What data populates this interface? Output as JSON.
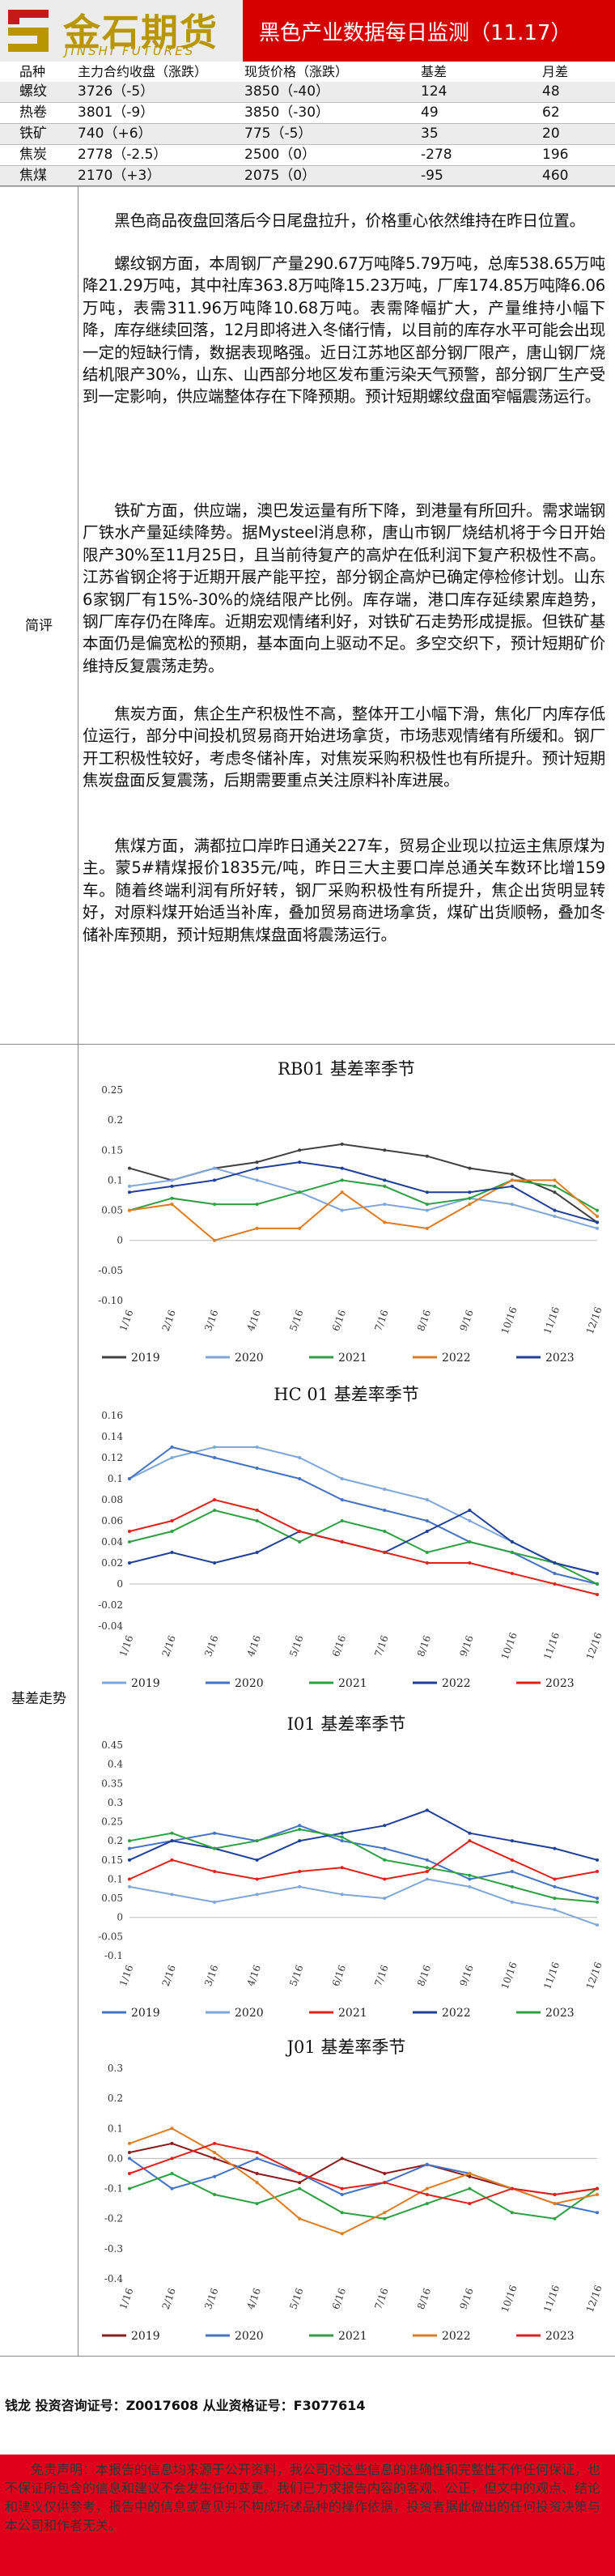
{
  "header": {
    "logo_cn": "金石期货",
    "logo_en": "JINSHI FUTURES",
    "title": "黑色产业数据每日监测（11.17）"
  },
  "price_table": {
    "headers": [
      "品种",
      "主力合约收盘（涨跌）",
      "现货价格（涨跌）",
      "基差",
      "月差"
    ],
    "rows": [
      [
        "螺纹",
        "3726（-5）",
        "3850（-40）",
        "124",
        "48"
      ],
      [
        "热卷",
        "3801（-9）",
        "3850（-30）",
        "49",
        "62"
      ],
      [
        "铁矿",
        "740（+6）",
        "775（-5）",
        "35",
        "20"
      ],
      [
        "焦炭",
        "2778（-2.5）",
        "2500（0）",
        "-278",
        "196"
      ],
      [
        "焦煤",
        "2170（+3）",
        "2075（0）",
        "-95",
        "460"
      ]
    ]
  },
  "commentary": {
    "label": "简评",
    "paragraphs": [
      "黑色商品夜盘回落后今日尾盘拉升，价格重心依然维持在昨日位置。",
      "螺纹钢方面，本周钢厂产量290.67万吨降5.79万吨，总库538.65万吨降21.29万吨，其中社库363.8万吨降15.23万吨，厂库174.85万吨降6.06万吨，表需311.96万吨降10.68万吨。表需降幅扩大，产量维持小幅下降，库存继续回落，12月即将进入冬储行情，以目前的库存水平可能会出现一定的短缺行情，数据表现略强。近日江苏地区部分钢厂限产，唐山钢厂烧结机限产30%，山东、山西部分地区发布重污染天气预警，部分钢厂生产受到一定影响，供应端整体存在下降预期。预计短期螺纹盘面窄幅震荡运行。",
      "铁矿方面，供应端，澳巴发运量有所下降，到港量有所回升。需求端钢厂铁水产量延续降势。据Mysteel消息称，唐山市钢厂烧结机将于今日开始限产30%至11月25日，且当前待复产的高炉在低利润下复产积极性不高。江苏省钢企将于近期开展产能平控，部分钢企高炉已确定停检修计划。山东6家钢厂有15%-30%的烧结限产比例。库存端，港口库存延续累库趋势，钢厂库存仍在降库。近期宏观情绪利好，对铁矿石走势形成提振。但铁矿基本面仍是偏宽松的预期，基本面向上驱动不足。多空交织下，预计短期矿价维持反复震荡走势。",
      "焦炭方面，焦企生产积极性不高，整体开工小幅下滑，焦化厂内库存低位运行，部分中间投机贸易商开始进场拿货，市场悲观情绪有所缓和。钢厂开工积极性较好，考虑冬储补库，对焦炭采购积极性也有所提升。预计短期焦炭盘面反复震荡，后期需要重点关注原料补库进展。",
      "焦煤方面，满都拉口岸昨日通关227车，贸易企业现以拉运主焦原煤为主。蒙5#精煤报价1835元/吨，昨日三大主要口岸总通关车数环比增159车。随着终端利润有所好转，钢厂采购积极性有所提升，焦企出货明显转好，对原料煤开始适当补库，叠加贸易商进场拿货，煤矿出货顺畅，叠加冬储补库预期，预计短期焦煤盘面将震荡运行。"
    ]
  },
  "basis_section": {
    "label": "基差走势"
  },
  "charts": [
    {
      "title": "RB01 基差率季节",
      "ylim": [
        -0.1,
        0.25
      ],
      "yticks": [
        "0.25",
        "0.2",
        "0.15",
        "0.1",
        "0.05",
        "0",
        "-0.05",
        "-0.10"
      ],
      "xticks": [
        "1/16",
        "2/16",
        "3/16",
        "4/16",
        "5/16",
        "6/16",
        "7/16",
        "8/16",
        "9/16",
        "10/16",
        "11/16",
        "12/16"
      ],
      "legend": [
        "2019",
        "2020",
        "2021",
        "2022",
        "2023"
      ]
    },
    {
      "title": "HC 01 基差率季节",
      "ylim": [
        -0.04,
        0.16
      ],
      "yticks": [
        "0.16",
        "0.14",
        "0.12",
        "0.1",
        "0.08",
        "0.06",
        "0.04",
        "0.02",
        "0",
        "-0.02",
        "-0.04"
      ],
      "xticks": [
        "1/16",
        "2/16",
        "3/16",
        "4/16",
        "5/16",
        "6/16",
        "7/16",
        "8/16",
        "9/16",
        "10/16",
        "11/16",
        "12/16"
      ],
      "legend": [
        "2019",
        "2020",
        "2021",
        "2022",
        "2023"
      ]
    },
    {
      "title": "I01 基差率季节",
      "ylim": [
        -0.1,
        0.45
      ],
      "yticks": [
        "0.45",
        "0.4",
        "0.35",
        "0.3",
        "0.25",
        "0.2",
        "0.15",
        "0.1",
        "0.05",
        "0",
        "-0.05",
        "-0.1"
      ],
      "xticks": [
        "1/16",
        "2/16",
        "3/16",
        "4/16",
        "5/16",
        "6/16",
        "7/16",
        "8/16",
        "9/16",
        "10/16",
        "11/16",
        "12/16"
      ],
      "legend": [
        "2019",
        "2020",
        "2021",
        "2022",
        "2023"
      ]
    },
    {
      "title": "J01 基差率季节",
      "ylim": [
        -0.4,
        0.3
      ],
      "yticks": [
        "0.3",
        "0.2",
        "0.1",
        "0.0",
        "-0.1",
        "-0.2",
        "-0.3",
        "-0.4"
      ],
      "xticks": [
        "1/16",
        "2/16",
        "3/16",
        "4/16",
        "5/16",
        "6/16",
        "7/16",
        "8/16",
        "9/16",
        "10/16",
        "11/16",
        "12/16"
      ],
      "legend": [
        "2019",
        "2020",
        "2021",
        "2022",
        "2023"
      ]
    }
  ],
  "series_colors": {
    "2019": "#404040",
    "2020": "#7fa6d9",
    "2021": "#2ea043",
    "2022": "#e07b22",
    "2023": "#1f3f99"
  },
  "chart_series_colors": [
    [
      "#404040",
      "#7fa6d9",
      "#2ea043",
      "#e07b22",
      "#1f3f99"
    ],
    [
      "#7fa6d9",
      "#4472c4",
      "#2ea043",
      "#1f3f99",
      "#e0201b"
    ],
    [
      "#4472c4",
      "#7fa6d9",
      "#e0201b",
      "#1f3f99",
      "#2ea043"
    ],
    [
      "#8b1a1a",
      "#4472c4",
      "#2ea043",
      "#e07b22",
      "#e0201b"
    ]
  ],
  "chart_data": [
    {
      "type": "line",
      "title": "RB01 基差率季节",
      "ylim": [
        -0.1,
        0.25
      ],
      "x": [
        "1/16",
        "2/16",
        "3/16",
        "4/16",
        "5/16",
        "6/16",
        "7/16",
        "8/16",
        "9/16",
        "10/16",
        "11/16",
        "12/16"
      ],
      "series": [
        {
          "name": "2019",
          "values": [
            0.12,
            0.1,
            0.12,
            0.13,
            0.15,
            0.16,
            0.15,
            0.14,
            0.12,
            0.11,
            0.08,
            0.03
          ]
        },
        {
          "name": "2020",
          "values": [
            0.09,
            0.1,
            0.12,
            0.1,
            0.08,
            0.05,
            0.06,
            0.05,
            0.07,
            0.06,
            0.04,
            0.02
          ]
        },
        {
          "name": "2021",
          "values": [
            0.05,
            0.07,
            0.06,
            0.06,
            0.08,
            0.1,
            0.09,
            0.06,
            0.07,
            0.1,
            0.09,
            0.05
          ]
        },
        {
          "name": "2022",
          "values": [
            0.05,
            0.06,
            0.0,
            0.02,
            0.02,
            0.08,
            0.03,
            0.02,
            0.06,
            0.1,
            0.1,
            0.04
          ]
        },
        {
          "name": "2023",
          "values": [
            0.08,
            0.09,
            0.1,
            0.12,
            0.13,
            0.12,
            0.1,
            0.08,
            0.08,
            0.09,
            0.05,
            0.03
          ]
        }
      ]
    },
    {
      "type": "line",
      "title": "HC 01 基差率季节",
      "ylim": [
        -0.04,
        0.16
      ],
      "x": [
        "1/16",
        "2/16",
        "3/16",
        "4/16",
        "5/16",
        "6/16",
        "7/16",
        "8/16",
        "9/16",
        "10/16",
        "11/16",
        "12/16"
      ],
      "series": [
        {
          "name": "2019",
          "values": [
            0.1,
            0.12,
            0.13,
            0.13,
            0.12,
            0.1,
            0.09,
            0.08,
            0.06,
            0.04,
            0.02,
            0.01
          ]
        },
        {
          "name": "2020",
          "values": [
            0.1,
            0.13,
            0.12,
            0.11,
            0.1,
            0.08,
            0.07,
            0.06,
            0.04,
            0.03,
            0.01,
            0.0
          ]
        },
        {
          "name": "2021",
          "values": [
            0.04,
            0.05,
            0.07,
            0.06,
            0.04,
            0.06,
            0.05,
            0.03,
            0.04,
            0.03,
            0.02,
            0.0
          ]
        },
        {
          "name": "2022",
          "values": [
            0.02,
            0.03,
            0.02,
            0.03,
            0.05,
            0.04,
            0.03,
            0.05,
            0.07,
            0.04,
            0.02,
            0.01
          ]
        },
        {
          "name": "2023",
          "values": [
            0.05,
            0.06,
            0.08,
            0.07,
            0.05,
            0.04,
            0.03,
            0.02,
            0.02,
            0.01,
            0.0,
            -0.01
          ]
        }
      ]
    },
    {
      "type": "line",
      "title": "I01 基差率季节",
      "ylim": [
        -0.1,
        0.45
      ],
      "x": [
        "1/16",
        "2/16",
        "3/16",
        "4/16",
        "5/16",
        "6/16",
        "7/16",
        "8/16",
        "9/16",
        "10/16",
        "11/16",
        "12/16"
      ],
      "series": [
        {
          "name": "2019",
          "values": [
            0.18,
            0.2,
            0.22,
            0.2,
            0.24,
            0.2,
            0.18,
            0.15,
            0.1,
            0.12,
            0.08,
            0.05
          ]
        },
        {
          "name": "2020",
          "values": [
            0.08,
            0.06,
            0.04,
            0.06,
            0.08,
            0.06,
            0.05,
            0.1,
            0.08,
            0.04,
            0.02,
            -0.02
          ]
        },
        {
          "name": "2021",
          "values": [
            0.1,
            0.15,
            0.12,
            0.1,
            0.12,
            0.13,
            0.1,
            0.12,
            0.2,
            0.15,
            0.1,
            0.12
          ]
        },
        {
          "name": "2022",
          "values": [
            0.15,
            0.2,
            0.18,
            0.15,
            0.2,
            0.22,
            0.24,
            0.28,
            0.22,
            0.2,
            0.18,
            0.15
          ]
        },
        {
          "name": "2023",
          "values": [
            0.2,
            0.22,
            0.18,
            0.2,
            0.23,
            0.21,
            0.15,
            0.13,
            0.11,
            0.08,
            0.05,
            0.04
          ]
        }
      ]
    },
    {
      "type": "line",
      "title": "J01 基差率季节",
      "ylim": [
        -0.4,
        0.3
      ],
      "x": [
        "1/16",
        "2/16",
        "3/16",
        "4/16",
        "5/16",
        "6/16",
        "7/16",
        "8/16",
        "9/16",
        "10/16",
        "11/16",
        "12/16"
      ],
      "series": [
        {
          "name": "2019",
          "values": [
            0.02,
            0.05,
            0.0,
            -0.05,
            -0.08,
            0.0,
            -0.05,
            -0.02,
            -0.06,
            -0.1,
            -0.12,
            -0.1
          ]
        },
        {
          "name": "2020",
          "values": [
            0.0,
            -0.1,
            -0.06,
            0.0,
            -0.05,
            -0.12,
            -0.08,
            -0.02,
            -0.05,
            -0.1,
            -0.15,
            -0.18
          ]
        },
        {
          "name": "2021",
          "values": [
            -0.1,
            -0.05,
            -0.12,
            -0.15,
            -0.1,
            -0.18,
            -0.2,
            -0.15,
            -0.1,
            -0.18,
            -0.2,
            -0.1
          ]
        },
        {
          "name": "2022",
          "values": [
            0.05,
            0.1,
            0.02,
            -0.08,
            -0.2,
            -0.25,
            -0.18,
            -0.1,
            -0.05,
            -0.1,
            -0.15,
            -0.12
          ]
        },
        {
          "name": "2023",
          "values": [
            -0.05,
            0.0,
            0.05,
            0.02,
            -0.05,
            -0.1,
            -0.08,
            -0.12,
            -0.15,
            -0.1,
            -0.12,
            -0.1
          ]
        }
      ]
    }
  ],
  "footer": {
    "contact": "钱龙 投资咨询证号：Z0017608 从业资格证号：F3077614",
    "disclaimer": "免责声明：本报告的信息均来源于公开资料，我公司对这些信息的准确性和完整性不作任何保证，也不保证所包含的信息和建议不会发生任何变更。我们已力求报告内容的客观、公正，但文中的观点、结论和建议仅供参考，报告中的信息或意见并不构成所述品种的操作依据，投资者据此做出的任何投资决策与本公司和作者无关。"
  }
}
